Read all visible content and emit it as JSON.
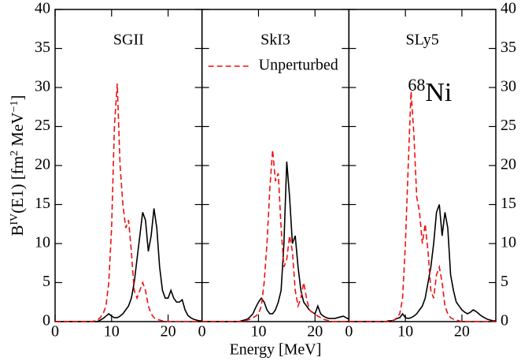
{
  "chart_data": [
    {
      "type": "line",
      "title": "SGII",
      "ylabel_parts": [
        "B",
        "IV",
        "(E1) [fm",
        "2",
        " MeV",
        "−1",
        "]"
      ],
      "x": [
        0,
        0.5,
        1,
        1.5,
        2,
        2.5,
        3,
        3.5,
        4,
        4.5,
        5,
        5.5,
        6,
        6.5,
        7,
        7.5,
        8,
        8.5,
        9,
        9.5,
        10,
        10.5,
        11,
        11.5,
        12,
        12.5,
        13,
        13.5,
        14,
        14.5,
        15,
        15.5,
        16,
        16.5,
        17,
        17.5,
        18,
        18.5,
        19,
        19.5,
        20,
        20.5,
        21,
        21.5,
        22,
        22.5,
        23,
        23.5,
        24,
        24.5,
        25,
        25.5,
        26
      ],
      "series": [
        {
          "color": "#000000",
          "linestyle": "solid",
          "values": [
            0,
            0,
            0,
            0,
            0,
            0,
            0,
            0,
            0,
            0,
            0,
            0,
            0,
            0,
            0,
            0,
            0.2,
            0.4,
            0.7,
            1,
            0.7,
            0.5,
            0.5,
            0.7,
            1,
            1.5,
            2,
            3,
            5,
            8,
            11,
            14,
            13,
            9,
            11,
            14.5,
            12,
            7,
            4,
            3,
            3,
            4,
            3,
            2.5,
            2.5,
            2.8,
            1.5,
            0.8,
            0.5,
            0.3,
            0.2,
            0.1,
            0.1
          ]
        },
        {
          "name": "Unperturbed",
          "color": "#ee1111",
          "linestyle": "dashed",
          "values": [
            0,
            0,
            0,
            0,
            0,
            0,
            0,
            0,
            0,
            0,
            0,
            0,
            0,
            0,
            0.1,
            0.2,
            0.5,
            1,
            2,
            5,
            12,
            25,
            30.5,
            20,
            15,
            12,
            13,
            9,
            4,
            3,
            4,
            5,
            4,
            2,
            1,
            0.5,
            0.3,
            0.2,
            0.1,
            0,
            0,
            0,
            0,
            0,
            0,
            0,
            0,
            0,
            0,
            0,
            0,
            0,
            0
          ]
        }
      ],
      "xlim": [
        0,
        26
      ],
      "ylim": [
        0,
        40
      ],
      "xticks": [
        0,
        10,
        20
      ],
      "yticks": [
        0,
        5,
        10,
        15,
        20,
        25,
        30,
        35,
        40
      ]
    },
    {
      "type": "line",
      "title": "SkI3",
      "xlabel": "Energy [MeV]",
      "legend": "upper left",
      "x": [
        0,
        0.5,
        1,
        1.5,
        2,
        2.5,
        3,
        3.5,
        4,
        4.5,
        5,
        5.5,
        6,
        6.5,
        7,
        7.5,
        8,
        8.5,
        9,
        9.5,
        10,
        10.5,
        11,
        11.5,
        12,
        12.5,
        13,
        13.5,
        14,
        14.5,
        15,
        15.5,
        16,
        16.5,
        17,
        17.5,
        18,
        18.5,
        19,
        19.5,
        20,
        20.5,
        21,
        21.5,
        22,
        22.5,
        23,
        23.5,
        24,
        24.5,
        25,
        25.5,
        26
      ],
      "series": [
        {
          "color": "#000000",
          "linestyle": "solid",
          "values": [
            0,
            0,
            0,
            0,
            0,
            0,
            0,
            0,
            0,
            0,
            0,
            0,
            0,
            0,
            0.1,
            0.2,
            0.3,
            0.6,
            1,
            1.8,
            2.5,
            3,
            2.5,
            1.5,
            1,
            1,
            1.5,
            2.5,
            4,
            10,
            20.5,
            16,
            10,
            11,
            7,
            4,
            2.5,
            2,
            1.5,
            1.2,
            1,
            2,
            1,
            0.7,
            0.5,
            0.4,
            0.4,
            0.4,
            0.5,
            0.6,
            0.7,
            0.5,
            0.3
          ]
        },
        {
          "name": "Unperturbed",
          "color": "#ee1111",
          "linestyle": "dashed",
          "values": [
            0,
            0,
            0,
            0,
            0,
            0,
            0,
            0,
            0,
            0,
            0,
            0,
            0,
            0,
            0,
            0,
            0.2,
            0.3,
            0.5,
            0.7,
            1,
            2,
            5,
            10,
            17,
            22,
            18,
            19,
            12,
            7,
            8,
            11,
            9,
            4,
            2,
            3,
            5,
            3,
            1.5,
            1.2,
            1,
            0.7,
            0.5,
            0.3,
            0.2,
            0.1,
            0,
            0,
            0,
            0,
            0,
            0,
            0
          ]
        }
      ],
      "xlim": [
        0,
        26
      ],
      "ylim": [
        0,
        40
      ],
      "xticks": [
        0,
        10,
        20
      ],
      "yticks": [
        0,
        5,
        10,
        15,
        20,
        25,
        30,
        35,
        40
      ]
    },
    {
      "type": "line",
      "title": "SLy5",
      "annotation": {
        "mass_number": "68",
        "element": "Ni"
      },
      "x": [
        0,
        0.5,
        1,
        1.5,
        2,
        2.5,
        3,
        3.5,
        4,
        4.5,
        5,
        5.5,
        6,
        6.5,
        7,
        7.5,
        8,
        8.5,
        9,
        9.5,
        10,
        10.5,
        11,
        11.5,
        12,
        12.5,
        13,
        13.5,
        14,
        14.5,
        15,
        15.5,
        16,
        16.5,
        17,
        17.5,
        18,
        18.5,
        19,
        19.5,
        20,
        20.5,
        21,
        21.5,
        22,
        22.5,
        23,
        23.5,
        24,
        24.5,
        25,
        25.5,
        26
      ],
      "series": [
        {
          "color": "#000000",
          "linestyle": "solid",
          "values": [
            0,
            0,
            0,
            0,
            0,
            0,
            0,
            0,
            0,
            0,
            0,
            0,
            0,
            0,
            0.1,
            0.1,
            0.2,
            0.4,
            0.5,
            1,
            0.5,
            0.4,
            0.5,
            0.7,
            1,
            1.5,
            2,
            3,
            5,
            7,
            10,
            14,
            15,
            11,
            14,
            12,
            6,
            4,
            2.5,
            2,
            1.5,
            1.2,
            1,
            1.2,
            1.5,
            1.3,
            1,
            0.7,
            0.5,
            0.3,
            0.2,
            0.1,
            0.1
          ]
        },
        {
          "name": "Unperturbed",
          "color": "#ee1111",
          "linestyle": "dashed",
          "values": [
            0,
            0,
            0,
            0,
            0,
            0,
            0,
            0,
            0,
            0,
            0,
            0,
            0,
            0,
            0,
            0,
            0.2,
            0.5,
            1,
            3,
            10,
            20,
            29.5,
            24,
            16,
            14,
            10,
            12.5,
            9,
            4,
            3,
            6,
            7,
            5,
            2,
            1,
            0.5,
            0.3,
            0.2,
            0.1,
            0,
            0,
            0,
            0,
            0,
            0,
            0,
            0,
            0,
            0,
            0,
            0,
            0
          ]
        }
      ],
      "xlim": [
        0,
        26
      ],
      "ylim": [
        0,
        40
      ],
      "xticks": [
        0,
        10,
        20
      ],
      "yticks": [
        0,
        5,
        10,
        15,
        20,
        25,
        30,
        35,
        40
      ]
    }
  ]
}
